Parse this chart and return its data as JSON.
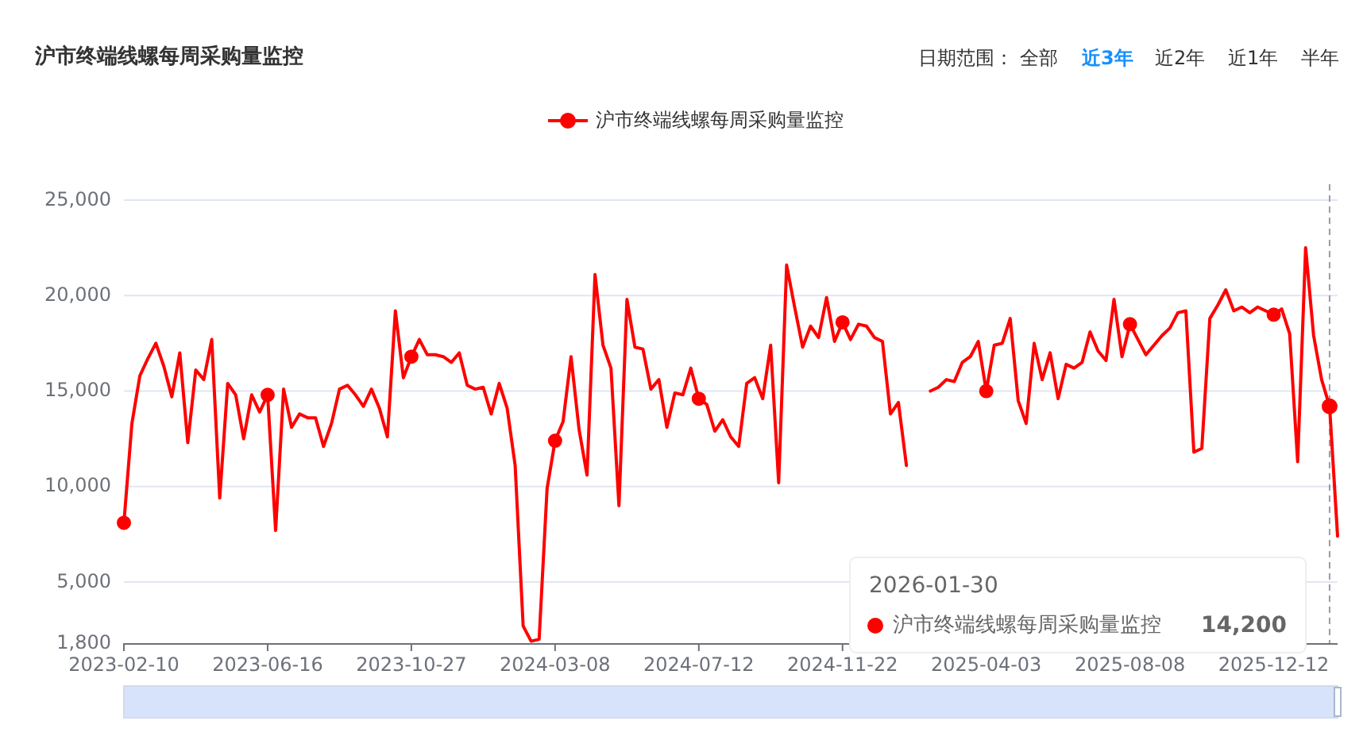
{
  "chart_data": {
    "type": "line",
    "title": "沪市终端线螺每周采购量监控",
    "categories": [
      "2023-02-10",
      null,
      null,
      null,
      null,
      null,
      null,
      null,
      null,
      null,
      null,
      null,
      null,
      null,
      null,
      null,
      null,
      null,
      "2023-06-16",
      null,
      null,
      null,
      null,
      null,
      null,
      null,
      null,
      null,
      null,
      null,
      null,
      null,
      null,
      null,
      null,
      null,
      "2023-10-27",
      null,
      null,
      null,
      null,
      null,
      null,
      null,
      null,
      null,
      null,
      null,
      null,
      null,
      null,
      null,
      null,
      null,
      "2024-03-08",
      null,
      null,
      null,
      null,
      null,
      null,
      null,
      null,
      null,
      null,
      null,
      null,
      null,
      null,
      null,
      null,
      null,
      "2024-07-12",
      null,
      null,
      null,
      null,
      null,
      null,
      null,
      null,
      null,
      null,
      null,
      null,
      null,
      null,
      null,
      null,
      null,
      "2024-11-22",
      null,
      null,
      null,
      null,
      null,
      null,
      null,
      null,
      null,
      null,
      null,
      null,
      null,
      null,
      null,
      null,
      null,
      "2025-04-03",
      null,
      null,
      null,
      null,
      null,
      null,
      null,
      null,
      null,
      null,
      null,
      null,
      null,
      null,
      null,
      null,
      null,
      "2025-08-08",
      null,
      null,
      null,
      null,
      null,
      null,
      null,
      null,
      null,
      null,
      null,
      null,
      null,
      null,
      null,
      null,
      null,
      "2025-12-12",
      null,
      null,
      null,
      null,
      null,
      null,
      null,
      null
    ],
    "series": [
      {
        "name": "沪市终端线螺每周采购量监控",
        "color": "#ff0000",
        "values": [
          8100,
          13300,
          15800,
          16700,
          17500,
          16300,
          14700,
          17000,
          12300,
          16100,
          15600,
          17700,
          9400,
          15400,
          14800,
          12500,
          14800,
          13900,
          14800,
          7700,
          15100,
          13100,
          13800,
          13600,
          13600,
          12100,
          13300,
          15100,
          15300,
          14800,
          14200,
          15100,
          14100,
          12600,
          19200,
          15700,
          16800,
          17700,
          16900,
          16900,
          16800,
          16500,
          17000,
          15300,
          15100,
          15200,
          13800,
          15400,
          14100,
          11100,
          2700,
          1900,
          2000,
          9900,
          12400,
          13400,
          16800,
          13000,
          10600,
          21100,
          17400,
          16200,
          9000,
          19800,
          17300,
          17200,
          15100,
          15600,
          13100,
          14900,
          14800,
          16200,
          14600,
          14300,
          12900,
          13500,
          12600,
          12100,
          15400,
          15700,
          14600,
          17400,
          10200,
          21600,
          19400,
          17300,
          18400,
          17800,
          19900,
          17600,
          18600,
          17700,
          18500,
          18400,
          17800,
          17600,
          13800,
          14400,
          11100,
          null,
          null,
          15000,
          15200,
          15600,
          15500,
          16500,
          16800,
          17600,
          15000,
          17400,
          17500,
          18800,
          14500,
          13300,
          17500,
          15600,
          17000,
          14600,
          16400,
          16200,
          16500,
          18100,
          17100,
          16600,
          19800,
          16800,
          18500,
          17700,
          16900,
          17400,
          17900,
          18300,
          19100,
          19200,
          11800,
          12000,
          18800,
          19500,
          20300,
          19200,
          19400,
          19100,
          19400,
          19200,
          19000,
          19300,
          18000,
          11300,
          22500,
          17900,
          15600,
          14200,
          7400
        ]
      }
    ],
    "ylim": [
      1800,
      25000
    ],
    "yticks": [
      {
        "value": 1800,
        "label": "1,800"
      },
      {
        "value": 5000,
        "label": "5,000"
      },
      {
        "value": 10000,
        "label": "10,000"
      },
      {
        "value": 15000,
        "label": "15,000"
      },
      {
        "value": 20000,
        "label": "20,000"
      },
      {
        "value": 25000,
        "label": "25,000"
      }
    ],
    "grid": "y",
    "legend": "top",
    "line_style": "solid",
    "annotations": [
      "日期范围：",
      "全部",
      "近3年",
      "近2年",
      "近1年",
      "半年",
      "2026-01-30",
      "14,200",
      "沪市终端线螺每周采购量监控"
    ]
  }
}
